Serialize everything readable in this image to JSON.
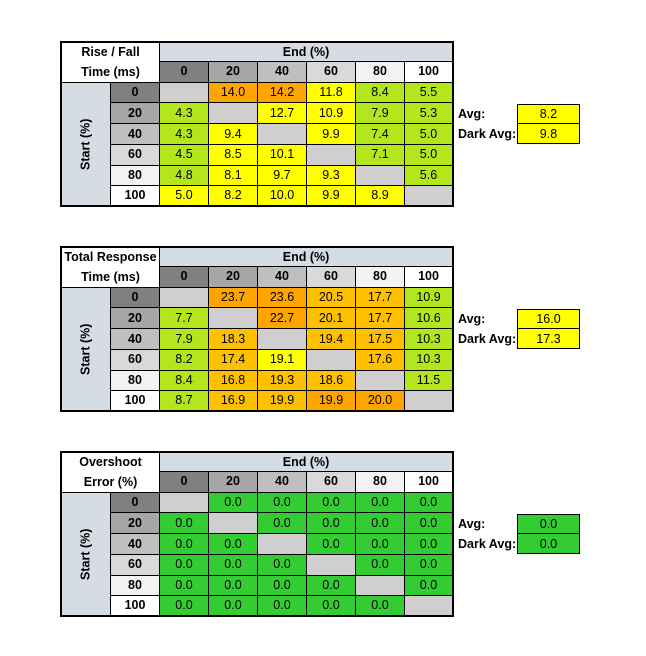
{
  "colors": {
    "header_bg": "#d6dce4",
    "hdr_0": "#808080",
    "hdr_20": "#a6a6a6",
    "hdr_40": "#bfbfbf",
    "hdr_60": "#d9d9d9",
    "hdr_80": "#f2f2f2",
    "hdr_100": "#ffffff",
    "diagonal": "#d0cece",
    "green": "#92d050",
    "lime": "#b4e61e",
    "yellow": "#ffff00",
    "gold": "#ffc000",
    "orange": "#ffa500",
    "bright_green": "#33cc33"
  },
  "tables": [
    {
      "title_line1": "Rise / Fall",
      "title_line2": "Time (ms)",
      "end_label": "End (%)",
      "start_label": "Start (%)",
      "columns": [
        "0",
        "20",
        "40",
        "60",
        "80",
        "100"
      ],
      "rows": [
        {
          "label": "0",
          "cells": [
            "",
            "14.0",
            "14.2",
            "11.8",
            "8.4",
            "5.5"
          ]
        },
        {
          "label": "20",
          "cells": [
            "4.3",
            "",
            "12.7",
            "10.9",
            "7.9",
            "5.3"
          ]
        },
        {
          "label": "40",
          "cells": [
            "4.3",
            "9.4",
            "",
            "9.9",
            "7.4",
            "5.0"
          ]
        },
        {
          "label": "60",
          "cells": [
            "4.5",
            "8.5",
            "10.1",
            "",
            "7.1",
            "5.0"
          ]
        },
        {
          "label": "80",
          "cells": [
            "4.8",
            "8.1",
            "9.7",
            "9.3",
            "",
            "5.6"
          ]
        },
        {
          "label": "100",
          "cells": [
            "5.0",
            "8.2",
            "10.0",
            "9.9",
            "8.9",
            ""
          ]
        }
      ],
      "cell_colors": [
        [
          "diagonal",
          "orange",
          "orange",
          "yellow",
          "lime",
          "lime"
        ],
        [
          "lime",
          "diagonal",
          "yellow",
          "yellow",
          "lime",
          "lime"
        ],
        [
          "lime",
          "yellow",
          "diagonal",
          "yellow",
          "lime",
          "lime"
        ],
        [
          "lime",
          "yellow",
          "yellow",
          "diagonal",
          "lime",
          "lime"
        ],
        [
          "lime",
          "yellow",
          "yellow",
          "yellow",
          "diagonal",
          "lime"
        ],
        [
          "yellow",
          "yellow",
          "yellow",
          "yellow",
          "yellow",
          "diagonal"
        ]
      ],
      "avg_label": "Avg:",
      "avg_value": "8.2",
      "dark_avg_label": "Dark Avg:",
      "dark_avg_value": "9.8",
      "avg_color": "yellow"
    },
    {
      "title_line1": "Total Response",
      "title_line2": "Time (ms)",
      "end_label": "End (%)",
      "start_label": "Start (%)",
      "columns": [
        "0",
        "20",
        "40",
        "60",
        "80",
        "100"
      ],
      "rows": [
        {
          "label": "0",
          "cells": [
            "",
            "23.7",
            "23.6",
            "20.5",
            "17.7",
            "10.9"
          ]
        },
        {
          "label": "20",
          "cells": [
            "7.7",
            "",
            "22.7",
            "20.1",
            "17.7",
            "10.6"
          ]
        },
        {
          "label": "40",
          "cells": [
            "7.9",
            "18.3",
            "",
            "19.4",
            "17.5",
            "10.3"
          ]
        },
        {
          "label": "60",
          "cells": [
            "8.2",
            "17.4",
            "19.1",
            "",
            "17.6",
            "10.3"
          ]
        },
        {
          "label": "80",
          "cells": [
            "8.4",
            "16.8",
            "19.3",
            "18.6",
            "",
            "11.5"
          ]
        },
        {
          "label": "100",
          "cells": [
            "8.7",
            "16.9",
            "19.9",
            "19.9",
            "20.0",
            ""
          ]
        }
      ],
      "cell_colors": [
        [
          "diagonal",
          "orange",
          "orange",
          "gold",
          "gold",
          "lime"
        ],
        [
          "lime",
          "diagonal",
          "orange",
          "gold",
          "gold",
          "lime"
        ],
        [
          "lime",
          "gold",
          "diagonal",
          "gold",
          "gold",
          "lime"
        ],
        [
          "lime",
          "gold",
          "yellow",
          "diagonal",
          "gold",
          "lime"
        ],
        [
          "lime",
          "gold",
          "gold",
          "gold",
          "diagonal",
          "lime"
        ],
        [
          "lime",
          "gold",
          "gold",
          "orange",
          "orange",
          "diagonal"
        ]
      ],
      "avg_label": "Avg:",
      "avg_value": "16.0",
      "dark_avg_label": "Dark Avg:",
      "dark_avg_value": "17.3",
      "avg_color": "yellow"
    },
    {
      "title_line1": "Overshoot",
      "title_line2": "Error (%)",
      "end_label": "End (%)",
      "start_label": "Start (%)",
      "columns": [
        "0",
        "20",
        "40",
        "60",
        "80",
        "100"
      ],
      "rows": [
        {
          "label": "0",
          "cells": [
            "",
            "0.0",
            "0.0",
            "0.0",
            "0.0",
            "0.0"
          ]
        },
        {
          "label": "20",
          "cells": [
            "0.0",
            "",
            "0.0",
            "0.0",
            "0.0",
            "0.0"
          ]
        },
        {
          "label": "40",
          "cells": [
            "0.0",
            "0.0",
            "",
            "0.0",
            "0.0",
            "0.0"
          ]
        },
        {
          "label": "60",
          "cells": [
            "0.0",
            "0.0",
            "0.0",
            "",
            "0.0",
            "0.0"
          ]
        },
        {
          "label": "80",
          "cells": [
            "0.0",
            "0.0",
            "0.0",
            "0.0",
            "",
            "0.0"
          ]
        },
        {
          "label": "100",
          "cells": [
            "0.0",
            "0.0",
            "0.0",
            "0.0",
            "0.0",
            ""
          ]
        }
      ],
      "cell_colors": [
        [
          "diagonal",
          "bright_green",
          "bright_green",
          "bright_green",
          "bright_green",
          "bright_green"
        ],
        [
          "bright_green",
          "diagonal",
          "bright_green",
          "bright_green",
          "bright_green",
          "bright_green"
        ],
        [
          "bright_green",
          "bright_green",
          "diagonal",
          "bright_green",
          "bright_green",
          "bright_green"
        ],
        [
          "bright_green",
          "bright_green",
          "bright_green",
          "diagonal",
          "bright_green",
          "bright_green"
        ],
        [
          "bright_green",
          "bright_green",
          "bright_green",
          "bright_green",
          "diagonal",
          "bright_green"
        ],
        [
          "bright_green",
          "bright_green",
          "bright_green",
          "bright_green",
          "bright_green",
          "diagonal"
        ]
      ],
      "avg_label": "Avg:",
      "avg_value": "0.0",
      "dark_avg_label": "Dark Avg:",
      "dark_avg_value": "0.0",
      "avg_color": "bright_green"
    }
  ]
}
